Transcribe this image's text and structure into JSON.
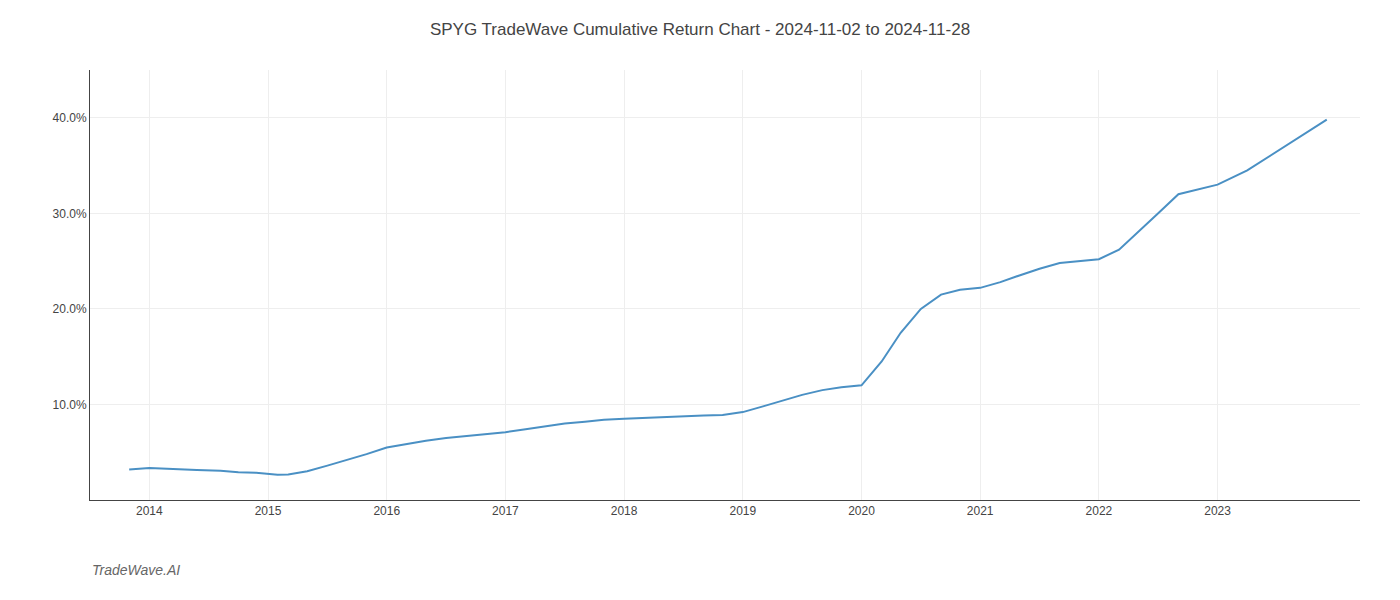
{
  "chart_data": {
    "type": "line",
    "title": "SPYG TradeWave Cumulative Return Chart - 2024-11-02 to 2024-11-28",
    "annotations": [
      "TradeWave.AI"
    ],
    "color": "#4a90c4",
    "x": [
      2013.83,
      2013.92,
      2014.0,
      2014.1,
      2014.25,
      2014.4,
      2014.6,
      2014.75,
      2014.9,
      2015.0,
      2015.08,
      2015.17,
      2015.33,
      2015.5,
      2015.67,
      2015.83,
      2016.0,
      2016.17,
      2016.33,
      2016.5,
      2016.67,
      2016.83,
      2017.0,
      2017.17,
      2017.33,
      2017.5,
      2017.67,
      2017.83,
      2018.0,
      2018.17,
      2018.33,
      2018.5,
      2018.67,
      2018.83,
      2019.0,
      2019.17,
      2019.33,
      2019.5,
      2019.67,
      2019.83,
      2020.0,
      2020.17,
      2020.33,
      2020.5,
      2020.67,
      2020.83,
      2021.0,
      2021.17,
      2021.33,
      2021.5,
      2021.67,
      2021.83,
      2022.0,
      2022.17,
      2022.33,
      2022.5,
      2022.67,
      2022.83,
      2023.0,
      2023.25,
      2023.5,
      2023.75,
      2023.92
    ],
    "values": [
      3.2,
      3.3,
      3.35,
      3.3,
      3.25,
      3.15,
      3.05,
      2.9,
      2.85,
      2.7,
      2.65,
      2.68,
      3.0,
      3.6,
      4.2,
      4.8,
      5.5,
      5.9,
      6.2,
      6.5,
      6.7,
      6.9,
      7.1,
      7.4,
      7.7,
      8.0,
      8.2,
      8.4,
      8.5,
      8.6,
      8.7,
      8.8,
      8.85,
      8.9,
      9.2,
      9.8,
      10.4,
      11.0,
      11.5,
      11.8,
      12.0,
      14.5,
      17.5,
      20.0,
      21.5,
      22.0,
      22.2,
      22.8,
      23.5,
      24.2,
      24.8,
      25.0,
      25.2,
      26.2,
      28.0,
      30.0,
      32.0,
      32.5,
      33.0,
      34.5,
      36.5,
      38.5,
      39.8
    ],
    "xlim": [
      2013.5,
      2024.2
    ],
    "ylim": [
      0,
      45
    ],
    "xticks": [
      2014,
      2015,
      2016,
      2017,
      2018,
      2019,
      2020,
      2021,
      2022,
      2023
    ],
    "yticks": [
      {
        "value": 10.0,
        "label": "10.0%"
      },
      {
        "value": 20.0,
        "label": "20.0%"
      },
      {
        "value": 30.0,
        "label": "30.0%"
      },
      {
        "value": 40.0,
        "label": "40.0%"
      }
    ],
    "grid": true
  }
}
